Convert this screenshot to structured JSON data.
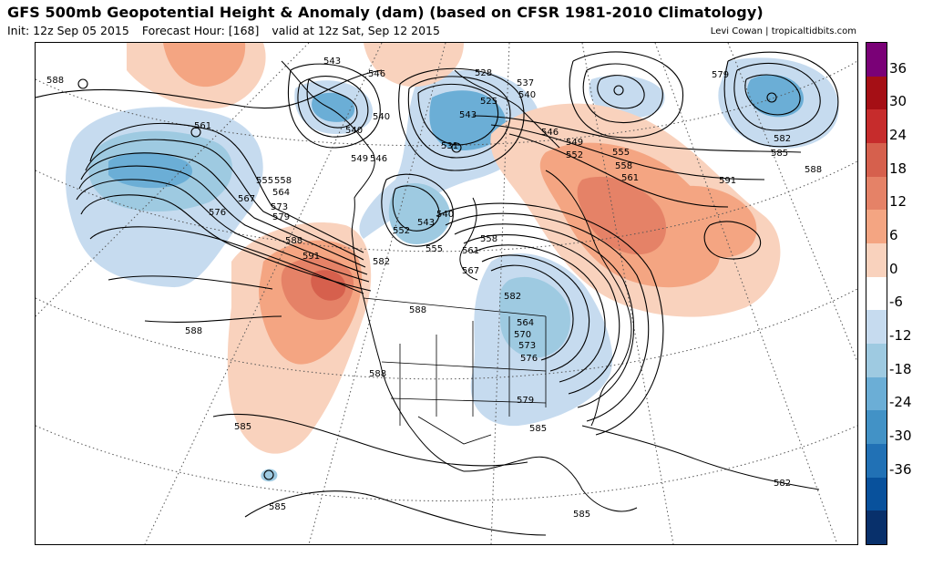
{
  "header": {
    "title": "GFS 500mb Geopotential Height & Anomaly (dam) (based on CFSR 1981-2010 Climatology)",
    "init": "Init: 12z Sep 05 2015",
    "forecast_hour": "Forecast Hour: [168]",
    "valid": "valid at 12z Sat, Sep 12 2015",
    "credit": "Levi Cowan | tropicaltidbits.com"
  },
  "colorbar": {
    "labels": [
      "36",
      "30",
      "24",
      "18",
      "12",
      "6",
      "0",
      "-6",
      "-12",
      "-18",
      "-24",
      "-30",
      "-36"
    ],
    "colors": [
      "#7a0177",
      "#a50f15",
      "#c62c2c",
      "#d6604d",
      "#e58267",
      "#f4a582",
      "#f9d2bd",
      "#ffffff",
      "#c6dbef",
      "#9ecae1",
      "#6baed6",
      "#4292c6",
      "#2171b5",
      "#08519c",
      "#08306b"
    ]
  },
  "contour_labels": [
    "588",
    "543",
    "546",
    "528",
    "537",
    "540",
    "525",
    "579",
    "561",
    "540",
    "540",
    "531",
    "543",
    "546",
    "549",
    "552",
    "555",
    "558",
    "561",
    "582",
    "585",
    "549",
    "546",
    "555",
    "558",
    "564",
    "567",
    "573",
    "576",
    "579",
    "540",
    "543",
    "552",
    "555",
    "561",
    "558",
    "567",
    "591",
    "582",
    "588",
    "591",
    "582",
    "564",
    "570",
    "573",
    "576",
    "579",
    "585",
    "588",
    "585",
    "582",
    "585",
    "588",
    "585",
    "588",
    "588"
  ]
}
